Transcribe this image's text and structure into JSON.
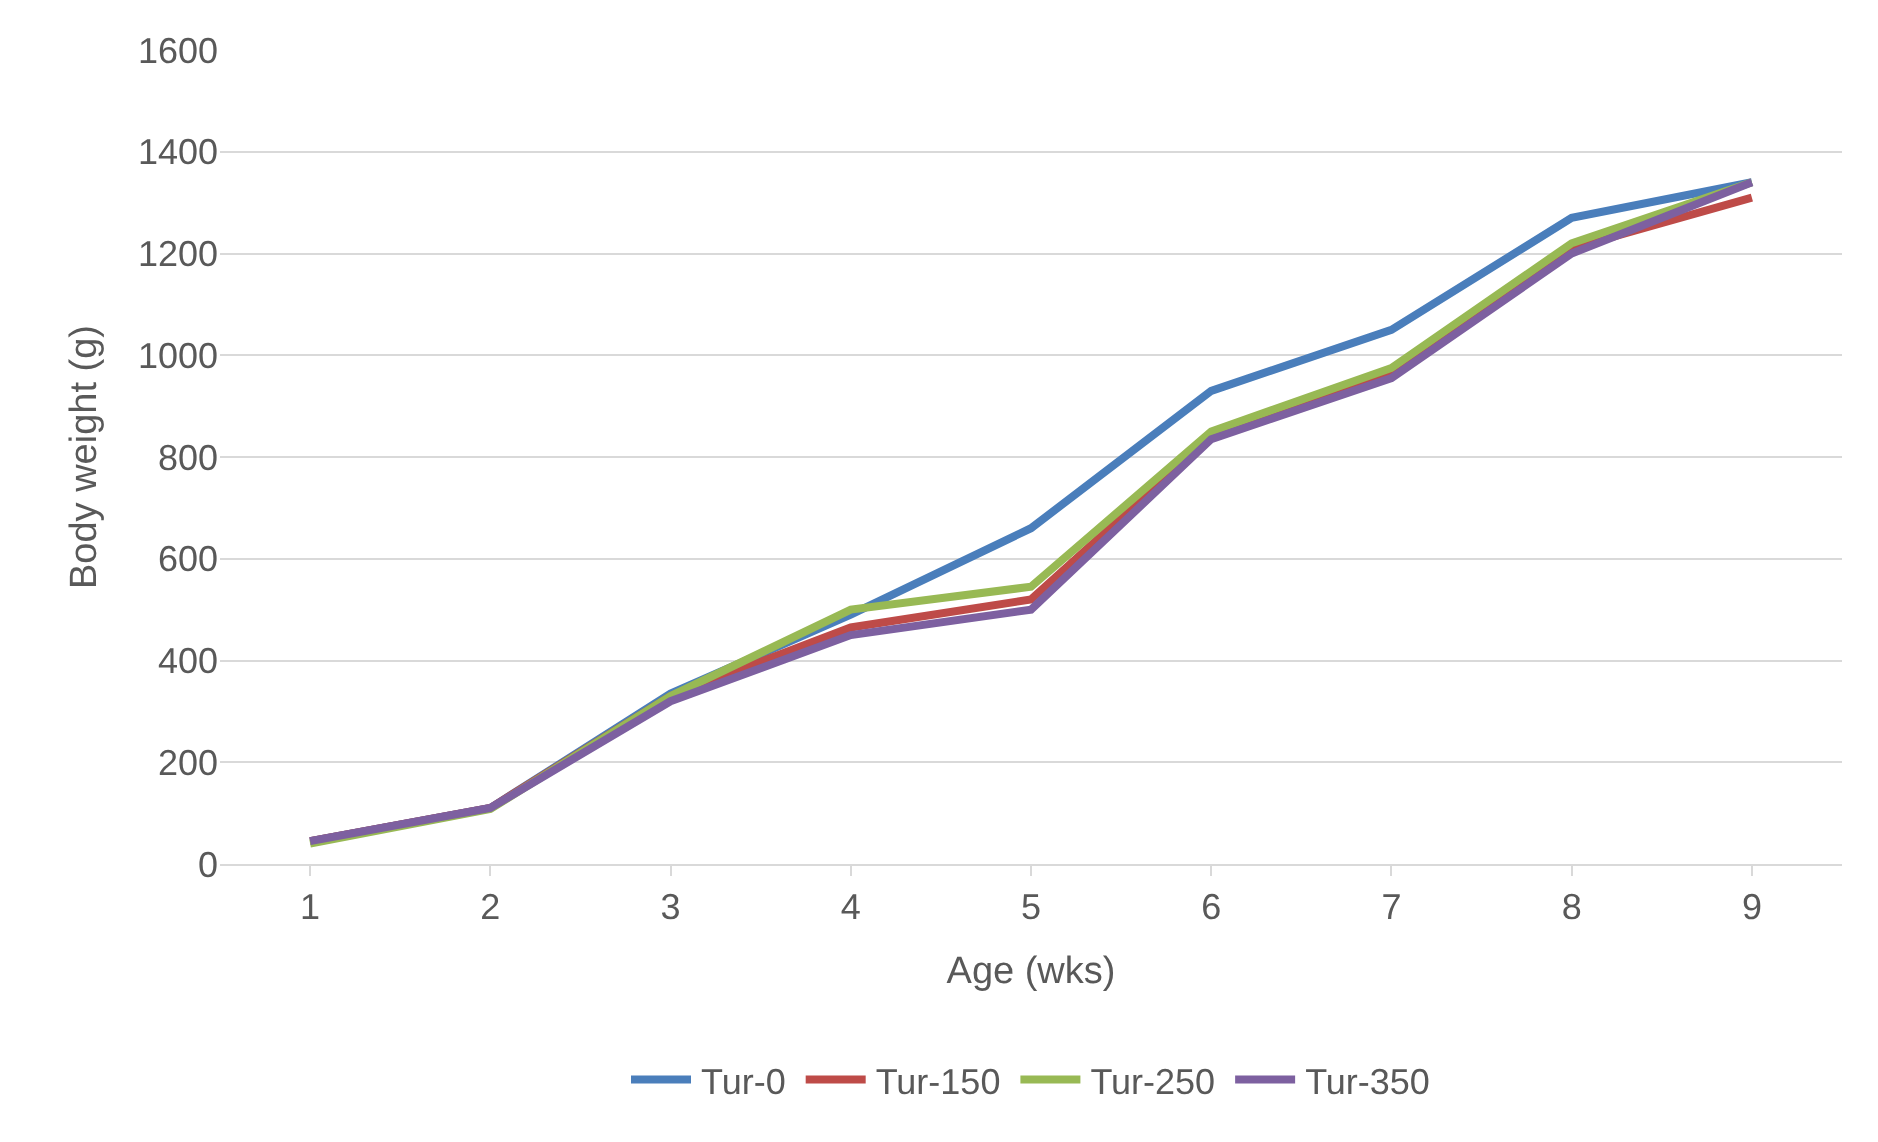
{
  "chart_data": {
    "type": "line",
    "xlabel": "Age (wks)",
    "ylabel": "Body weight (g)",
    "categories": [
      "1",
      "2",
      "3",
      "4",
      "5",
      "6",
      "7",
      "8",
      "9"
    ],
    "series": [
      {
        "name": "Tur-0",
        "color": "#4a7ebb",
        "values": [
          45,
          110,
          335,
          490,
          660,
          930,
          1050,
          1270,
          1340
        ]
      },
      {
        "name": "Tur-150",
        "color": "#be4b48",
        "values": [
          45,
          110,
          330,
          465,
          520,
          840,
          960,
          1210,
          1310
        ]
      },
      {
        "name": "Tur-250",
        "color": "#98b954",
        "values": [
          40,
          108,
          330,
          500,
          545,
          850,
          975,
          1220,
          1340
        ]
      },
      {
        "name": "Tur-350",
        "color": "#7d60a0",
        "values": [
          45,
          110,
          320,
          450,
          500,
          835,
          955,
          1200,
          1340
        ]
      }
    ],
    "ylim": [
      0,
      1600
    ],
    "yticks": [
      0,
      200,
      400,
      600,
      800,
      1000,
      1200,
      1400,
      1600
    ],
    "grid": "y",
    "legend": "bottom",
    "marker": "none",
    "line_style": "solid"
  }
}
